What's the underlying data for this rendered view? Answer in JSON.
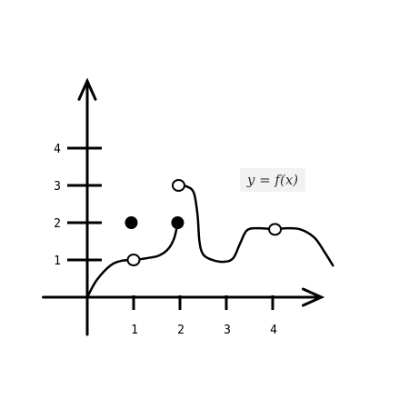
{
  "chart_data": {
    "type": "line",
    "title": "",
    "xlabel": "",
    "ylabel": "",
    "annotation": "y = f(x)",
    "xlim": [
      -0.95,
      5.05
    ],
    "ylim": [
      -1.0,
      5.8
    ],
    "x_ticks": [
      {
        "value": 1,
        "label": "1"
      },
      {
        "value": 2,
        "label": "2"
      },
      {
        "value": 3,
        "label": "3"
      },
      {
        "value": 4,
        "label": "4"
      }
    ],
    "y_ticks": [
      {
        "value": 1,
        "label": "1"
      },
      {
        "value": 2,
        "label": "2"
      },
      {
        "value": 3,
        "label": "3"
      },
      {
        "value": 4,
        "label": "4"
      }
    ],
    "curves": [
      {
        "name": "",
        "points": [
          [
            0,
            0
          ],
          [
            0.2,
            0.45
          ],
          [
            0.5,
            0.85
          ],
          [
            0.75,
            0.98
          ],
          [
            1,
            1
          ],
          [
            1.3,
            1.05
          ],
          [
            1.55,
            1.12
          ],
          [
            1.75,
            1.3
          ],
          [
            1.88,
            1.6
          ],
          [
            1.95,
            2
          ]
        ]
      },
      {
        "name": "",
        "points": [
          [
            2,
            3
          ],
          [
            2.15,
            2.97
          ],
          [
            2.3,
            2.8
          ],
          [
            2.38,
            2.2
          ],
          [
            2.42,
            1.5
          ],
          [
            2.5,
            1.15
          ],
          [
            2.7,
            1.0
          ],
          [
            2.95,
            0.95
          ],
          [
            3.15,
            1.05
          ],
          [
            3.3,
            1.45
          ],
          [
            3.45,
            1.8
          ],
          [
            3.7,
            1.85
          ],
          [
            4.05,
            1.82
          ]
        ]
      },
      {
        "name": "",
        "points": [
          [
            4.05,
            1.82
          ],
          [
            4.3,
            1.85
          ],
          [
            4.6,
            1.82
          ],
          [
            4.9,
            1.6
          ],
          [
            5.1,
            1.25
          ],
          [
            5.3,
            0.85
          ]
        ]
      }
    ],
    "points": [
      {
        "x": 0.95,
        "y": 2,
        "filled": true
      },
      {
        "x": 1.95,
        "y": 2,
        "filled": true
      },
      {
        "x": 1,
        "y": 1,
        "filled": false
      },
      {
        "x": 1.97,
        "y": 3,
        "filled": false
      },
      {
        "x": 4.05,
        "y": 1.82,
        "filled": false
      }
    ]
  }
}
